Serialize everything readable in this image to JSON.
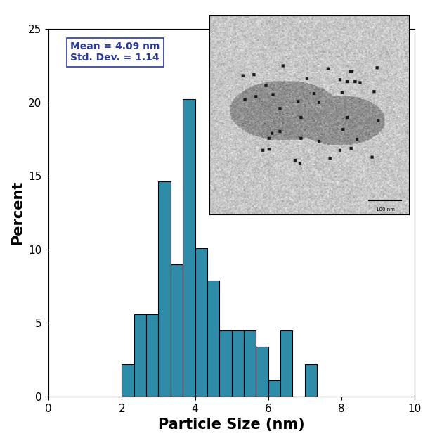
{
  "chart_data": {
    "type": "histogram",
    "x_label": "Particle Size (nm)",
    "y_label": "Percent",
    "bins": [
      2.0,
      2.333,
      2.667,
      3.0,
      3.333,
      3.667,
      4.0,
      4.333,
      4.667,
      5.0,
      5.333,
      5.667,
      6.0,
      6.333,
      6.667,
      7.0,
      7.333
    ],
    "counts": [
      2.2,
      5.6,
      5.6,
      14.6,
      9.0,
      20.2,
      10.1,
      7.9,
      4.5,
      4.5,
      4.5,
      3.4,
      1.1,
      4.5,
      0,
      2.2
    ],
    "color": "#2f8ca8",
    "xlim": [
      0,
      10
    ],
    "xticks": [
      0,
      2,
      4,
      6,
      8,
      10
    ],
    "ylim": [
      0,
      25
    ],
    "yticks": [
      0,
      5,
      10,
      15,
      20,
      25
    ],
    "annotations": [
      "Mean = 4.09 nm",
      "Std. Dev. = 1.14"
    ],
    "inset": {
      "scale_bar": "100 nm"
    }
  }
}
